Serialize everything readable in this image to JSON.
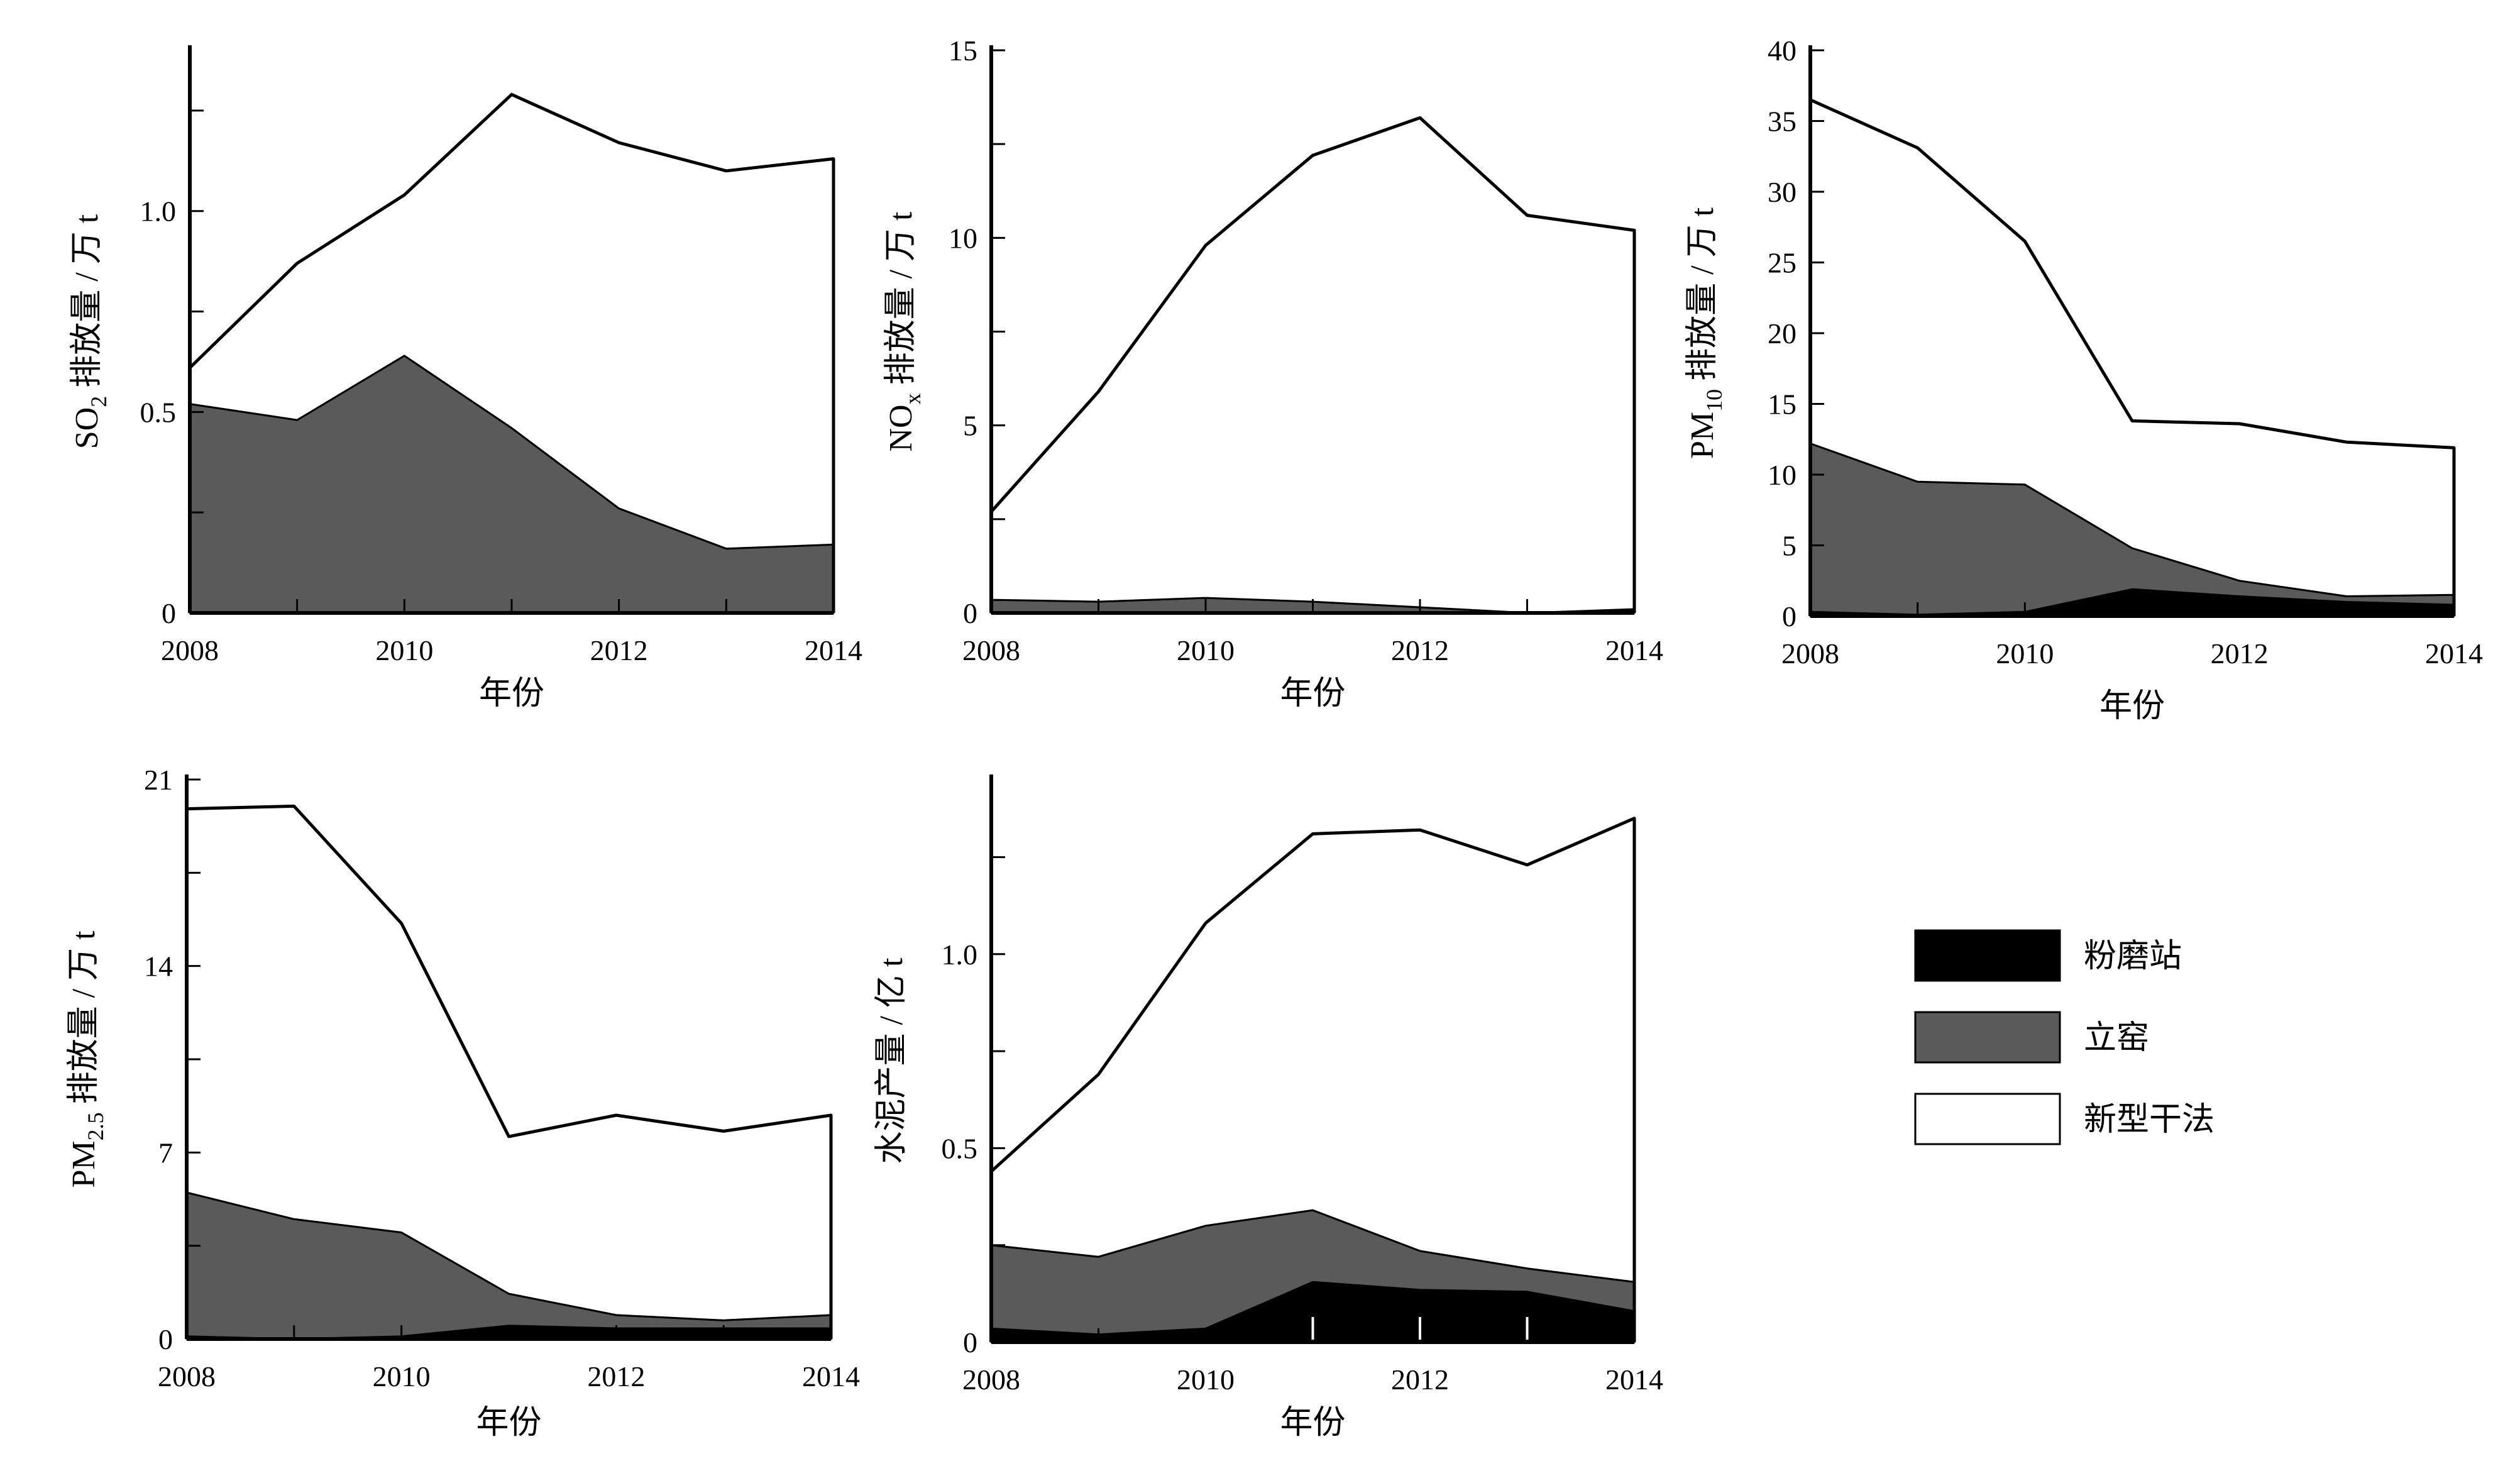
{
  "colors": {
    "grinding": "#000000",
    "shaft": "#5a5a5a",
    "dry": "#ffffff",
    "axis": "#000000"
  },
  "legend": {
    "items": [
      {
        "key": "grinding",
        "label": "粉磨站"
      },
      {
        "key": "shaft",
        "label": "立窑"
      },
      {
        "key": "dry",
        "label": "新型干法"
      }
    ]
  },
  "chart_data": [
    {
      "id": "so2",
      "type": "area",
      "stacked": true,
      "title": "",
      "xlabel": "年份",
      "ylabel_main": "SO",
      "ylabel_sub": "2",
      "ylabel_rest": " 排放量 / 万 t",
      "x": [
        2008,
        2009,
        2010,
        2011,
        2012,
        2013,
        2014
      ],
      "xticks": [
        "2008",
        "2010",
        "2012",
        "2014"
      ],
      "xlim": [
        2008,
        2014
      ],
      "ylim": [
        0,
        1.4
      ],
      "yticks": [
        0,
        0.25,
        0.5,
        0.75,
        1.0,
        1.25
      ],
      "ytick_labels": [
        "0",
        "",
        "0.5",
        "",
        "1.0",
        ""
      ],
      "series": [
        {
          "name": "粉磨站",
          "key": "grinding",
          "values": [
            0,
            0,
            0,
            0,
            0,
            0,
            0
          ]
        },
        {
          "name": "立窑",
          "key": "shaft",
          "values": [
            0.52,
            0.48,
            0.64,
            0.46,
            0.26,
            0.16,
            0.17
          ]
        },
        {
          "name": "新型干法",
          "key": "dry",
          "values": [
            0.09,
            0.39,
            0.4,
            0.83,
            0.91,
            0.94,
            0.96
          ]
        }
      ]
    },
    {
      "id": "nox",
      "type": "area",
      "stacked": true,
      "title": "",
      "xlabel": "年份",
      "ylabel_main": "NO",
      "ylabel_sub": "x",
      "ylabel_rest": " 排放量 / 万 t",
      "x": [
        2008,
        2009,
        2010,
        2011,
        2012,
        2013,
        2014
      ],
      "xticks": [
        "2008",
        "2010",
        "2012",
        "2014"
      ],
      "xlim": [
        2008,
        2014
      ],
      "ylim": [
        0,
        15
      ],
      "yticks": [
        0,
        2.5,
        5,
        7.5,
        10,
        12.5,
        15
      ],
      "ytick_labels": [
        "0",
        "",
        "5",
        "",
        "10",
        "",
        "15"
      ],
      "series": [
        {
          "name": "粉磨站",
          "key": "grinding",
          "values": [
            0,
            0,
            0,
            0,
            0,
            0,
            0.05
          ]
        },
        {
          "name": "立窑",
          "key": "shaft",
          "values": [
            0.35,
            0.3,
            0.4,
            0.3,
            0.15,
            0,
            0.05
          ]
        },
        {
          "name": "新型干法",
          "key": "dry",
          "values": [
            2.35,
            5.6,
            9.4,
            11.9,
            13.05,
            10.6,
            10.1
          ]
        }
      ]
    },
    {
      "id": "pm10",
      "type": "area",
      "stacked": true,
      "title": "",
      "xlabel": "年份",
      "ylabel_main": "PM",
      "ylabel_sub": "10",
      "ylabel_rest": " 排放量 / 万 t",
      "x": [
        2008,
        2009,
        2010,
        2011,
        2012,
        2013,
        2014
      ],
      "xticks": [
        "2008",
        "2010",
        "2012",
        "2014"
      ],
      "xlim": [
        2008,
        2014
      ],
      "ylim": [
        0,
        40
      ],
      "yticks": [
        0,
        5,
        10,
        15,
        20,
        25,
        30,
        35,
        40
      ],
      "ytick_labels": [
        "0",
        "5",
        "10",
        "15",
        "20",
        "25",
        "30",
        "35",
        "40"
      ],
      "series": [
        {
          "name": "粉磨站",
          "key": "grinding",
          "values": [
            0.3,
            0.1,
            0.3,
            1.9,
            1.4,
            1.0,
            0.8
          ]
        },
        {
          "name": "立窑",
          "key": "shaft",
          "values": [
            11.9,
            9.4,
            9.0,
            2.9,
            1.1,
            0.4,
            0.7
          ]
        },
        {
          "name": "新型干法",
          "key": "dry",
          "values": [
            24.3,
            23.6,
            17.2,
            9.0,
            11.1,
            10.9,
            10.4
          ]
        }
      ]
    },
    {
      "id": "pm25",
      "type": "area",
      "stacked": true,
      "title": "",
      "xlabel": "年份",
      "ylabel_main": "PM",
      "ylabel_sub": "2.5",
      "ylabel_rest": " 排放量 / 万 t",
      "x": [
        2008,
        2009,
        2010,
        2011,
        2012,
        2013,
        2014
      ],
      "xticks": [
        "2008",
        "2010",
        "2012",
        "2014"
      ],
      "xlim": [
        2008,
        2014
      ],
      "ylim": [
        0,
        21
      ],
      "yticks": [
        0,
        3.5,
        7,
        10.5,
        14,
        17.5,
        21
      ],
      "ytick_labels": [
        "0",
        "",
        "7",
        "",
        "14",
        "",
        "21"
      ],
      "series": [
        {
          "name": "粉磨站",
          "key": "grinding",
          "values": [
            0.1,
            0.0,
            0.1,
            0.5,
            0.4,
            0.4,
            0.4
          ]
        },
        {
          "name": "立窑",
          "key": "shaft",
          "values": [
            5.4,
            4.5,
            3.9,
            1.2,
            0.5,
            0.3,
            0.5
          ]
        },
        {
          "name": "新型干法",
          "key": "dry",
          "values": [
            14.4,
            15.5,
            11.6,
            5.9,
            7.5,
            7.1,
            7.5
          ]
        }
      ]
    },
    {
      "id": "cement",
      "type": "area",
      "stacked": true,
      "title": "",
      "xlabel": "年份",
      "ylabel_main": "水泥产量 / 亿 t",
      "ylabel_sub": "",
      "ylabel_rest": "",
      "x": [
        2008,
        2009,
        2010,
        2011,
        2012,
        2013,
        2014
      ],
      "xticks": [
        "2008",
        "2010",
        "2012",
        "2014"
      ],
      "xlim": [
        2008,
        2014
      ],
      "ylim": [
        0,
        1.45
      ],
      "yticks": [
        0,
        0.25,
        0.5,
        0.75,
        1.0,
        1.25
      ],
      "ytick_labels": [
        "0",
        "",
        "0.5",
        "",
        "1.0",
        ""
      ],
      "series": [
        {
          "name": "粉磨站",
          "key": "grinding",
          "values": [
            0.035,
            0.02,
            0.035,
            0.155,
            0.135,
            0.13,
            0.08
          ]
        },
        {
          "name": "立窑",
          "key": "shaft",
          "values": [
            0.215,
            0.2,
            0.265,
            0.185,
            0.1,
            0.06,
            0.075
          ]
        },
        {
          "name": "新型干法",
          "key": "dry",
          "values": [
            0.19,
            0.47,
            0.78,
            0.97,
            1.085,
            1.04,
            1.195
          ]
        }
      ]
    }
  ]
}
